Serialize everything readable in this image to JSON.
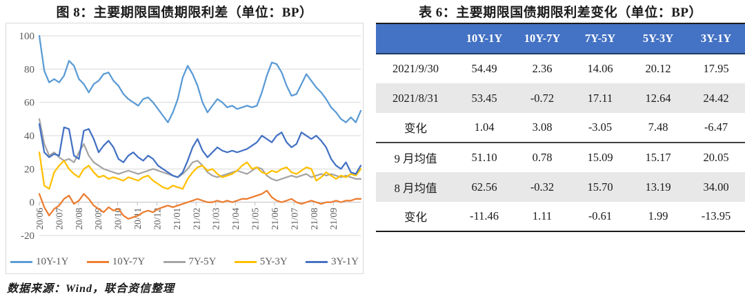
{
  "figure": {
    "title": "图 8：主要期限国债期限利差（单位：BP）",
    "source": "数据来源：Wind，联合资信整理"
  },
  "chart_data": {
    "type": "line",
    "title": "图 8：主要期限国债期限利差（单位：BP）",
    "ylabel": "",
    "xlabel": "",
    "ylim": [
      -20,
      100
    ],
    "y_ticks": [
      100,
      80,
      60,
      40,
      20,
      0,
      -20
    ],
    "grid": true,
    "legend_position": "bottom",
    "x_tick_labels": [
      "20/06",
      "20/07",
      "20/08",
      "20/09",
      "20/10",
      "20/11",
      "20/12",
      "21/01",
      "21/02",
      "21/03",
      "21/04",
      "21/05",
      "21/06",
      "21/07",
      "21/08",
      "21/09"
    ],
    "colors": {
      "grid": "#d9d9d9",
      "axis": "#bfbfbf",
      "tick_text": "#595959"
    },
    "series": [
      {
        "name": "10Y-1Y",
        "color": "#5B9BD5",
        "values": [
          100,
          79,
          72,
          74,
          72,
          76,
          85,
          82,
          74,
          71,
          66,
          71,
          73,
          77,
          78,
          73,
          70,
          65,
          62,
          60,
          58,
          62,
          63,
          60,
          56,
          52,
          48,
          54,
          62,
          75,
          82,
          77,
          70,
          60,
          54,
          58,
          62,
          60,
          57,
          58,
          56,
          57,
          58,
          57,
          58,
          66,
          76,
          84,
          83,
          78,
          70,
          64,
          65,
          71,
          77,
          73,
          69,
          66,
          62,
          57,
          54,
          50,
          48,
          51,
          48,
          55
        ]
      },
      {
        "name": "10Y-7Y",
        "color": "#ED7D31",
        "values": [
          5,
          -3,
          -8,
          -4,
          -2,
          2,
          4,
          -1,
          1,
          5,
          2,
          -2,
          -4,
          -6,
          -3,
          -5,
          -4,
          -8,
          -10,
          -9,
          -8,
          -6,
          -5,
          -6,
          -4,
          -3,
          -2,
          -3,
          -2,
          -1,
          0,
          1,
          2,
          1,
          0,
          0,
          1,
          0,
          1,
          0,
          1,
          2,
          2,
          3,
          4,
          5,
          7,
          3,
          1,
          0,
          1,
          2,
          0,
          -1,
          0,
          1,
          0,
          -1,
          0,
          0,
          1,
          0,
          1,
          1,
          2,
          2
        ]
      },
      {
        "name": "7Y-5Y",
        "color": "#A5A5A5",
        "values": [
          50,
          35,
          28,
          30,
          27,
          25,
          26,
          24,
          30,
          35,
          28,
          24,
          22,
          20,
          19,
          18,
          17,
          18,
          19,
          18,
          17,
          18,
          19,
          20,
          19,
          18,
          17,
          16,
          15,
          17,
          20,
          24,
          25,
          22,
          18,
          16,
          15,
          16,
          17,
          18,
          19,
          18,
          17,
          19,
          21,
          20,
          16,
          14,
          13,
          14,
          15,
          16,
          15,
          16,
          17,
          15,
          16,
          17,
          16,
          17,
          16,
          15,
          16,
          15,
          14,
          14
        ]
      },
      {
        "name": "5Y-3Y",
        "color": "#FFC000",
        "values": [
          30,
          10,
          8,
          18,
          22,
          25,
          20,
          17,
          15,
          20,
          22,
          18,
          15,
          16,
          14,
          15,
          14,
          13,
          15,
          14,
          13,
          15,
          16,
          13,
          11,
          9,
          8,
          10,
          9,
          8,
          14,
          18,
          21,
          22,
          19,
          20,
          17,
          15,
          16,
          17,
          19,
          22,
          24,
          20,
          21,
          18,
          17,
          19,
          18,
          20,
          21,
          18,
          17,
          19,
          21,
          20,
          13,
          15,
          18,
          16,
          14,
          16,
          15,
          17,
          16,
          20
        ]
      },
      {
        "name": "3Y-1Y",
        "color": "#4472C4",
        "values": [
          47,
          30,
          27,
          29,
          28,
          45,
          44,
          28,
          26,
          43,
          44,
          38,
          30,
          34,
          37,
          33,
          26,
          24,
          28,
          30,
          27,
          25,
          28,
          26,
          22,
          20,
          18,
          16,
          15,
          18,
          25,
          33,
          38,
          31,
          27,
          30,
          33,
          31,
          30,
          31,
          30,
          31,
          32,
          34,
          36,
          40,
          38,
          36,
          40,
          42,
          36,
          33,
          35,
          42,
          40,
          38,
          40,
          37,
          33,
          26,
          22,
          20,
          24,
          18,
          17,
          22
        ]
      }
    ]
  },
  "table": {
    "title": "表 6：主要期限国债期限利差变化（单位：BP）",
    "header_bg": "#4472C4",
    "stripe_bg": "#E8E8E8",
    "columns": [
      "",
      "10Y-1Y",
      "10Y-7Y",
      "7Y-5Y",
      "5Y-3Y",
      "3Y-1Y"
    ],
    "groups": [
      {
        "rows": [
          {
            "label": "2021/9/30",
            "values": [
              "54.49",
              "2.36",
              "14.06",
              "20.12",
              "17.95"
            ]
          },
          {
            "label": "2021/8/31",
            "values": [
              "53.45",
              "-0.72",
              "17.11",
              "12.64",
              "24.42"
            ]
          },
          {
            "label": "变化",
            "values": [
              "1.04",
              "3.08",
              "-3.05",
              "7.48",
              "-6.47"
            ]
          }
        ]
      },
      {
        "rows": [
          {
            "label": "9 月均值",
            "values": [
              "51.10",
              "0.78",
              "15.09",
              "15.17",
              "20.05"
            ]
          },
          {
            "label": "8 月均值",
            "values": [
              "62.56",
              "-0.32",
              "15.70",
              "13.19",
              "34.00"
            ]
          },
          {
            "label": "变化",
            "values": [
              "-11.46",
              "1.11",
              "-0.61",
              "1.99",
              "-13.95"
            ]
          }
        ]
      }
    ]
  }
}
